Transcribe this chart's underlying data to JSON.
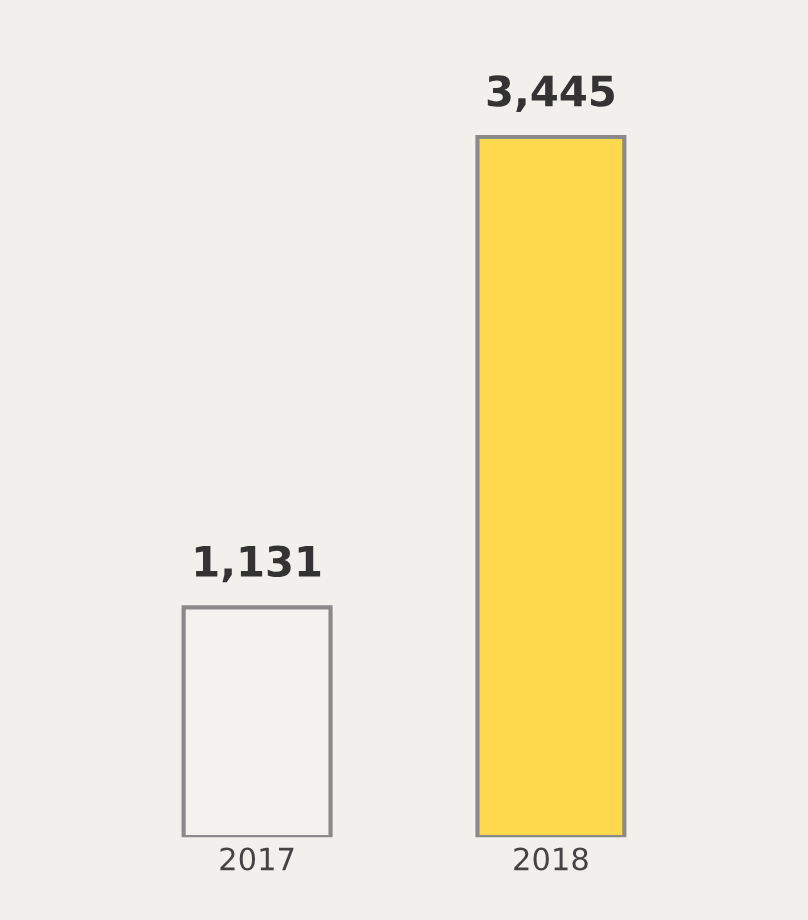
{
  "chart_data": {
    "type": "bar",
    "categories": [
      "2017",
      "2018"
    ],
    "values": [
      1131,
      3445
    ],
    "colors": [
      "#f4f2ef",
      "#ffd94d"
    ],
    "value_labels": [
      "1,131",
      "3,445"
    ]
  }
}
